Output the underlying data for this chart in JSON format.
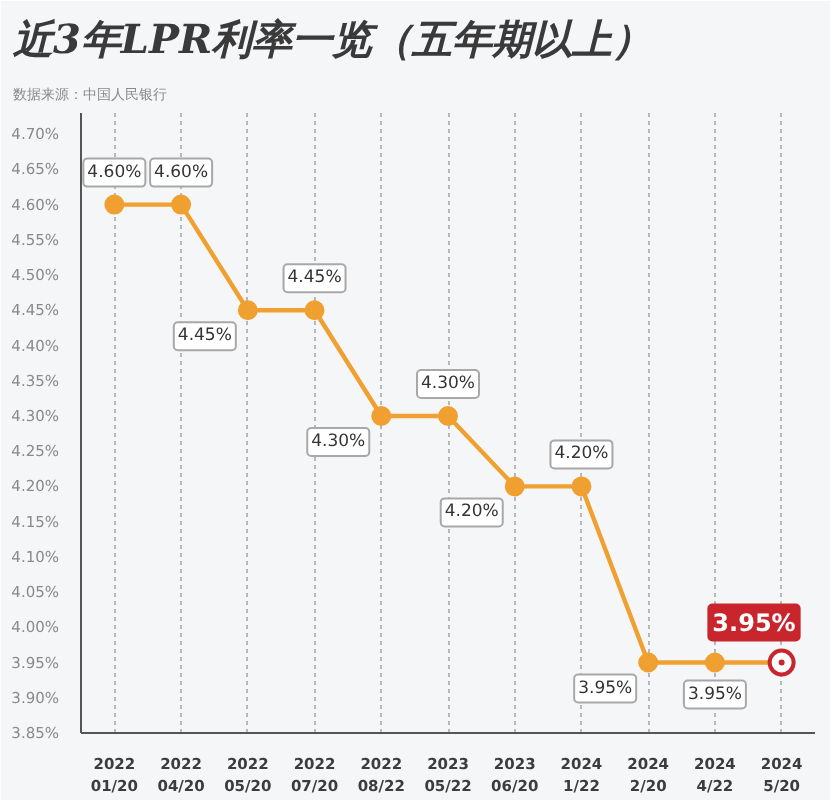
{
  "chart_data": {
    "type": "line",
    "title": "近3年LPR利率一览（五年期以上）",
    "annotations": [
      "数据来源：中国人民银行"
    ],
    "categories": [
      "2022\n01/20",
      "2022\n04/20",
      "2022\n05/20",
      "2022\n07/20",
      "2022\n08/22",
      "2023\n05/22",
      "2023\n06/20",
      "2024\n1/22",
      "2024\n2/20",
      "2024\n4/22",
      "2024\n5/20"
    ],
    "values": [
      4.6,
      4.6,
      4.45,
      4.45,
      4.3,
      4.3,
      4.2,
      4.2,
      3.95,
      3.95,
      3.95
    ],
    "value_labels": [
      "4.60%",
      "4.60%",
      "4.45%",
      "4.45%",
      "4.30%",
      "4.30%",
      "4.20%",
      "4.20%",
      "3.95%",
      "3.95%",
      "3.95%"
    ],
    "color": "#f0a030",
    "colors": [
      "#f0a030",
      "#f0a030",
      "#f0a030",
      "#f0a030",
      "#f0a030",
      "#f0a030",
      "#f0a030",
      "#f0a030",
      "#f0a030",
      "#f0a030",
      "#c8262c"
    ],
    "ylim": [
      3.85,
      4.73
    ],
    "yticks": [
      {
        "value": 3.85,
        "label": "3.85%"
      },
      {
        "value": 3.9,
        "label": "3.90%"
      },
      {
        "value": 3.95,
        "label": "3.95%"
      },
      {
        "value": 4.0,
        "label": "4.00%"
      },
      {
        "value": 4.05,
        "label": "4.05%"
      },
      {
        "value": 4.1,
        "label": "4.10%"
      },
      {
        "value": 4.15,
        "label": "4.15%"
      },
      {
        "value": 4.2,
        "label": "4.20%"
      },
      {
        "value": 4.25,
        "label": "4.25%"
      },
      {
        "value": 4.3,
        "label": "4.30%"
      },
      {
        "value": 4.35,
        "label": "4.35%"
      },
      {
        "value": 4.4,
        "label": "4.40%"
      },
      {
        "value": 4.45,
        "label": "4.45%"
      },
      {
        "value": 4.5,
        "label": "4.50%"
      },
      {
        "value": 4.55,
        "label": "4.55%"
      },
      {
        "value": 4.6,
        "label": "4.60%"
      },
      {
        "value": 4.65,
        "label": "4.65%"
      },
      {
        "value": 4.7,
        "label": "4.70%"
      }
    ],
    "grid": "x",
    "marker": "circle",
    "line_style": "solid"
  }
}
